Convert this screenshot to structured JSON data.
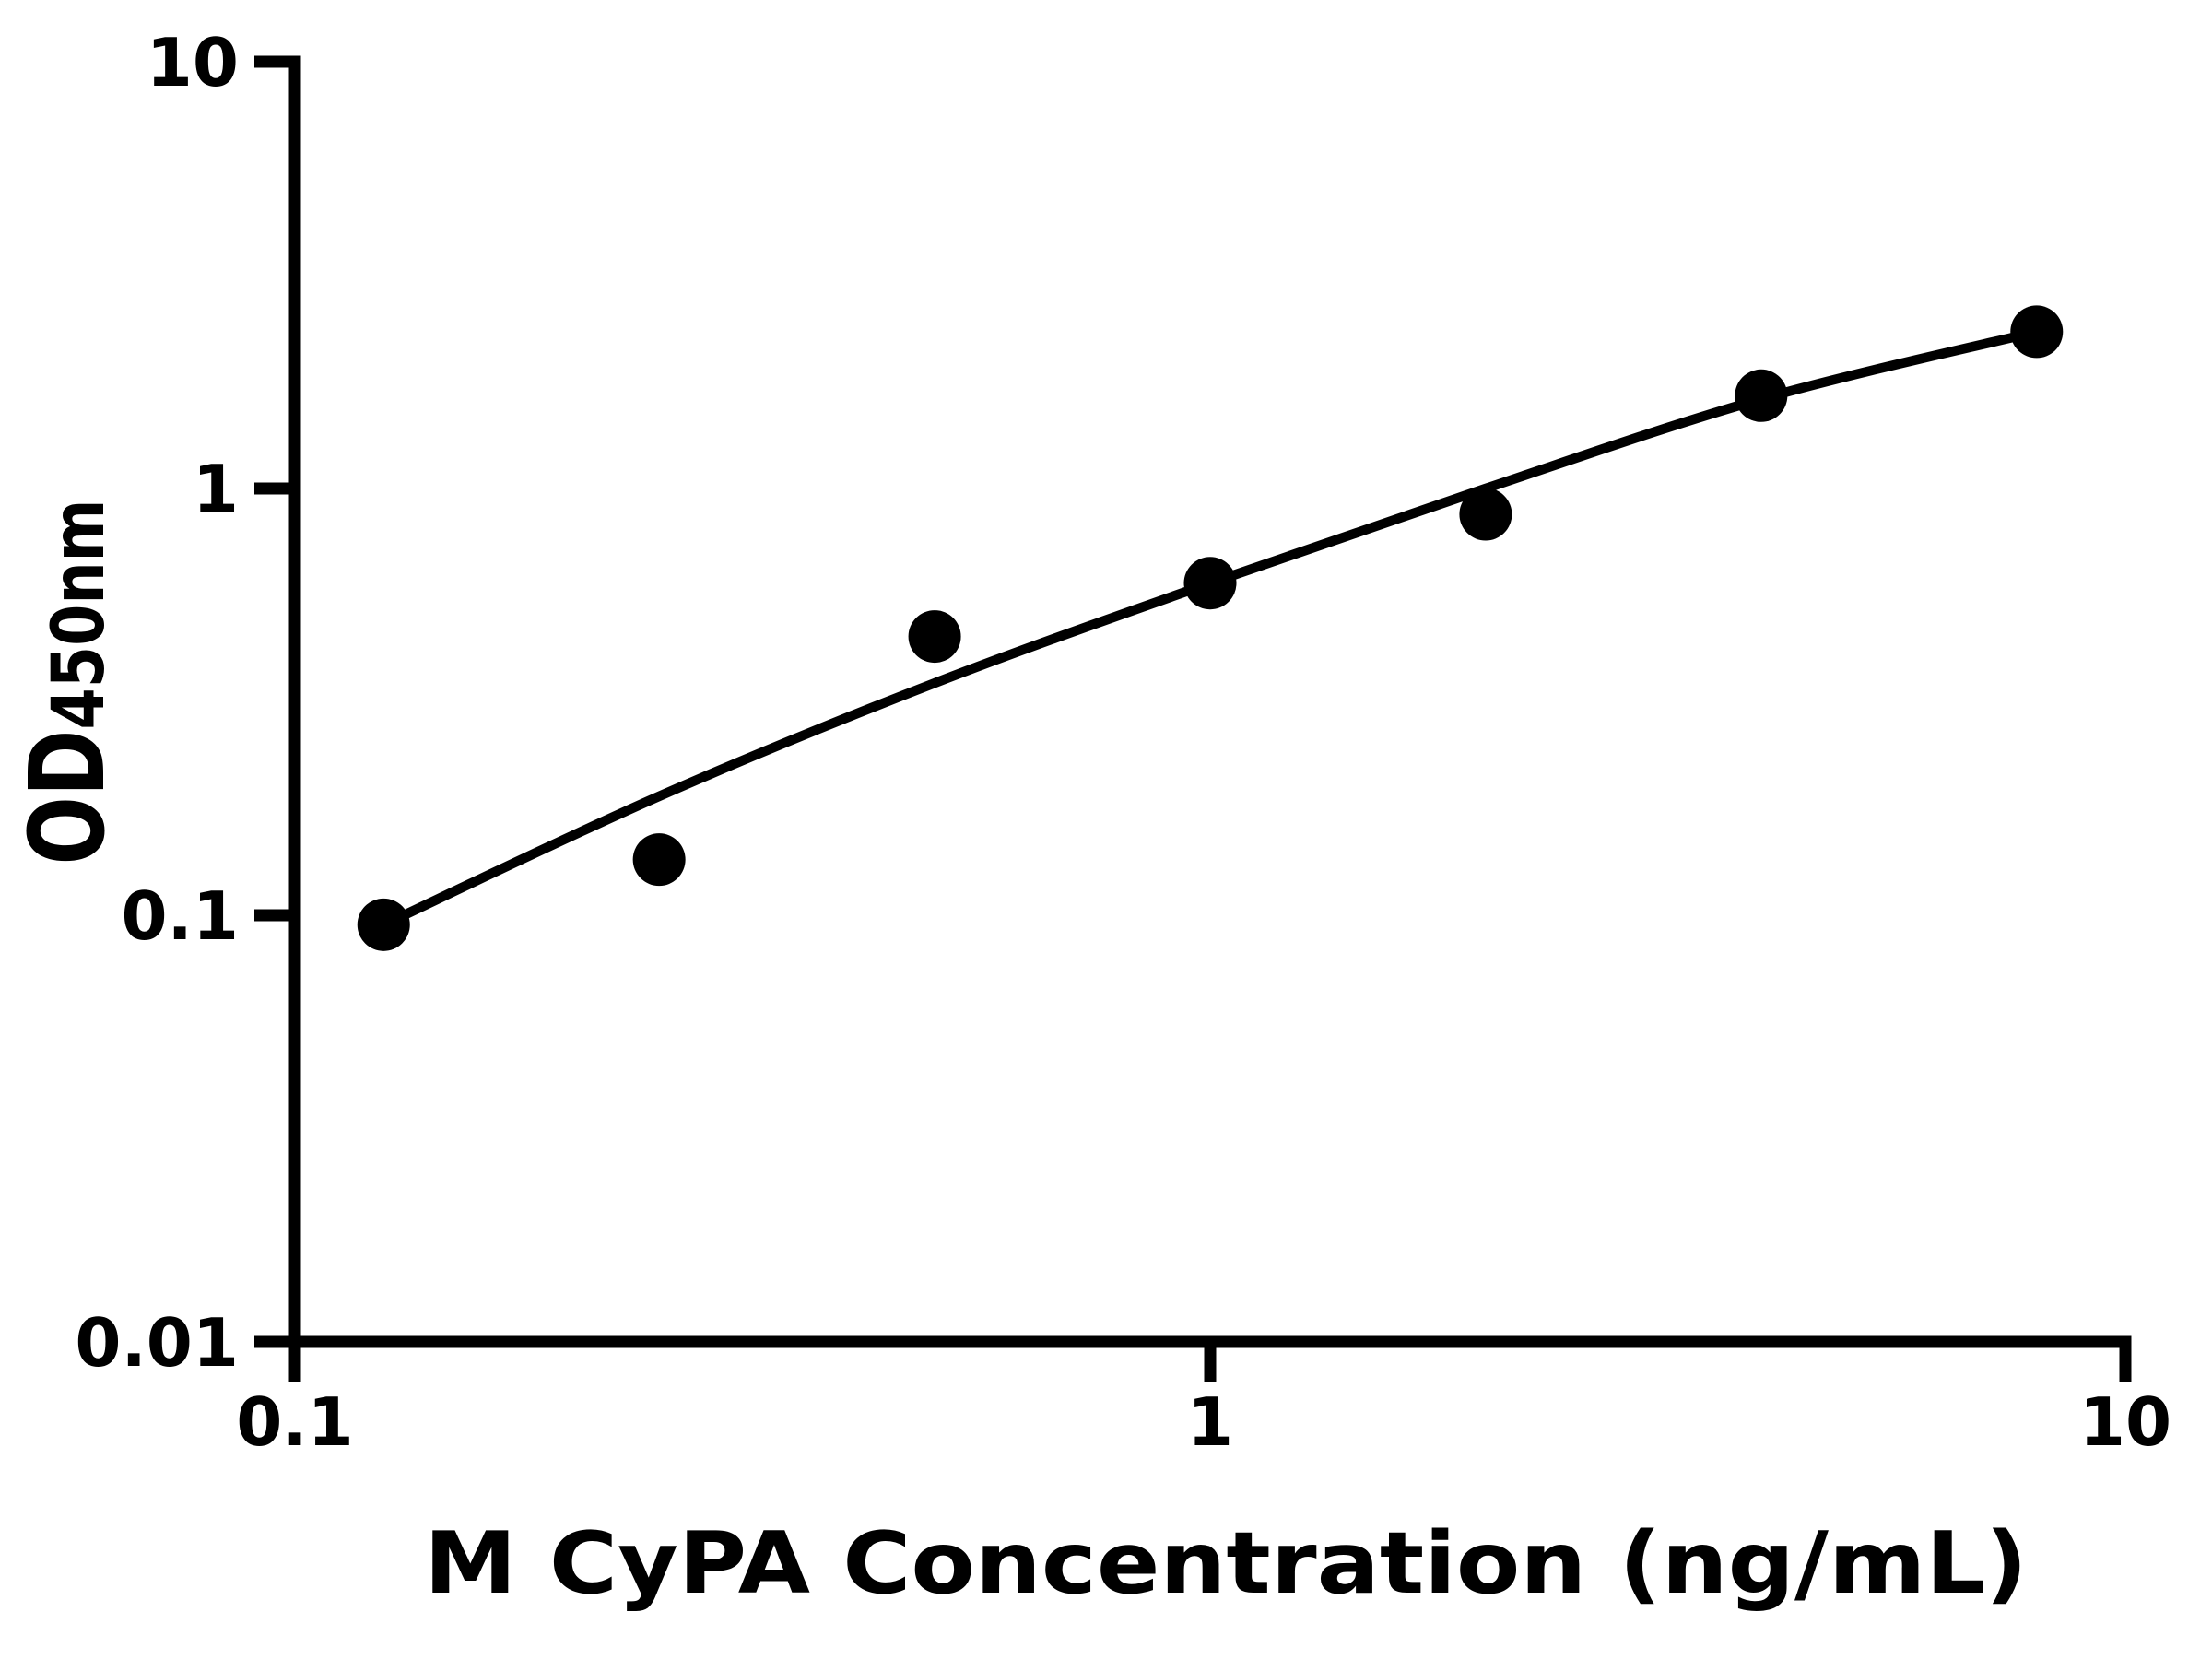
{
  "figure": {
    "background_color": "#ffffff",
    "foreground_color": "#000000"
  },
  "chart_data": {
    "type": "scatter",
    "title": "",
    "xlabel": "M CyPA Concentration (ng/mL)",
    "ylabel": "OD450nm",
    "ylabel_main": "OD",
    "ylabel_sub": "450nm",
    "x_scale": "log",
    "y_scale": "log",
    "xlim": [
      0.1,
      10
    ],
    "ylim": [
      0.01,
      10
    ],
    "grid": false,
    "legend": null,
    "marker_color": "#000000",
    "line_color": "#000000",
    "x_ticks": [
      {
        "value": 0.1,
        "label": "0.1"
      },
      {
        "value": 1,
        "label": "1"
      },
      {
        "value": 10,
        "label": "10"
      }
    ],
    "y_ticks": [
      {
        "value": 0.01,
        "label": "0.01"
      },
      {
        "value": 0.1,
        "label": "0.1"
      },
      {
        "value": 1,
        "label": "1"
      },
      {
        "value": 10,
        "label": "10"
      }
    ],
    "points": [
      {
        "x": 0.125,
        "y": 0.095
      },
      {
        "x": 0.25,
        "y": 0.135
      },
      {
        "x": 0.5,
        "y": 0.45
      },
      {
        "x": 1,
        "y": 0.6
      },
      {
        "x": 2,
        "y": 0.87
      },
      {
        "x": 4,
        "y": 1.65
      },
      {
        "x": 8,
        "y": 2.33
      }
    ],
    "fit_curve": [
      {
        "x": 0.125,
        "y": 0.095
      },
      {
        "x": 0.25,
        "y": 0.19
      },
      {
        "x": 0.5,
        "y": 0.35
      },
      {
        "x": 1,
        "y": 0.6
      },
      {
        "x": 2,
        "y": 1.0
      },
      {
        "x": 4,
        "y": 1.62
      },
      {
        "x": 8,
        "y": 2.33
      }
    ]
  }
}
